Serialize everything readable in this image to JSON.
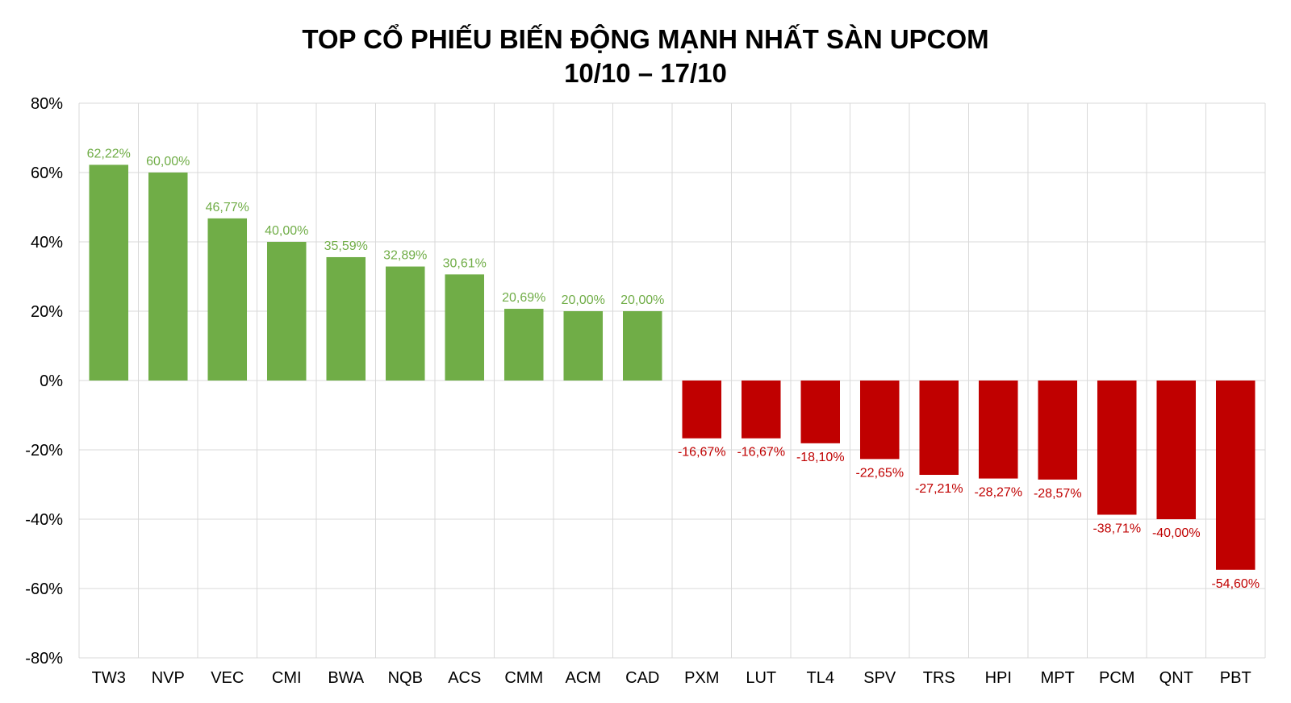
{
  "chart_data": {
    "type": "bar",
    "title": "TOP CỔ PHIẾU BIẾN ĐỘNG MẠNH NHẤT SÀN UPCOM",
    "subtitle": "10/10 – 17/10",
    "xlabel": "",
    "ylabel": "",
    "ylim": [
      -80,
      80
    ],
    "yticks": [
      80,
      60,
      40,
      20,
      0,
      -20,
      -40,
      -60,
      -80
    ],
    "ytick_labels": [
      "80%",
      "60%",
      "40%",
      "20%",
      "0%",
      "-20%",
      "-40%",
      "-60%",
      "-80%"
    ],
    "grid": true,
    "legend": "none",
    "colors": {
      "positive": "#70ad47",
      "negative": "#c00000",
      "grid": "#d9d9d9"
    },
    "categories": [
      "TW3",
      "NVP",
      "VEC",
      "CMI",
      "BWA",
      "NQB",
      "ACS",
      "CMM",
      "ACM",
      "CAD",
      "PXM",
      "LUT",
      "TL4",
      "SPV",
      "TRS",
      "HPI",
      "MPT",
      "PCM",
      "QNT",
      "PBT"
    ],
    "values": [
      62.22,
      60.0,
      46.77,
      40.0,
      35.59,
      32.89,
      30.61,
      20.69,
      20.0,
      20.0,
      -16.67,
      -16.67,
      -18.1,
      -22.65,
      -27.21,
      -28.27,
      -28.57,
      -38.71,
      -40.0,
      -54.6
    ],
    "data_labels": [
      "62,22%",
      "60,00%",
      "46,77%",
      "40,00%",
      "35,59%",
      "32,89%",
      "30,61%",
      "20,69%",
      "20,00%",
      "20,00%",
      "-16,67%",
      "-16,67%",
      "-18,10%",
      "-22,65%",
      "-27,21%",
      "-28,27%",
      "-28,57%",
      "-38,71%",
      "-40,00%",
      "-54,60%"
    ]
  }
}
